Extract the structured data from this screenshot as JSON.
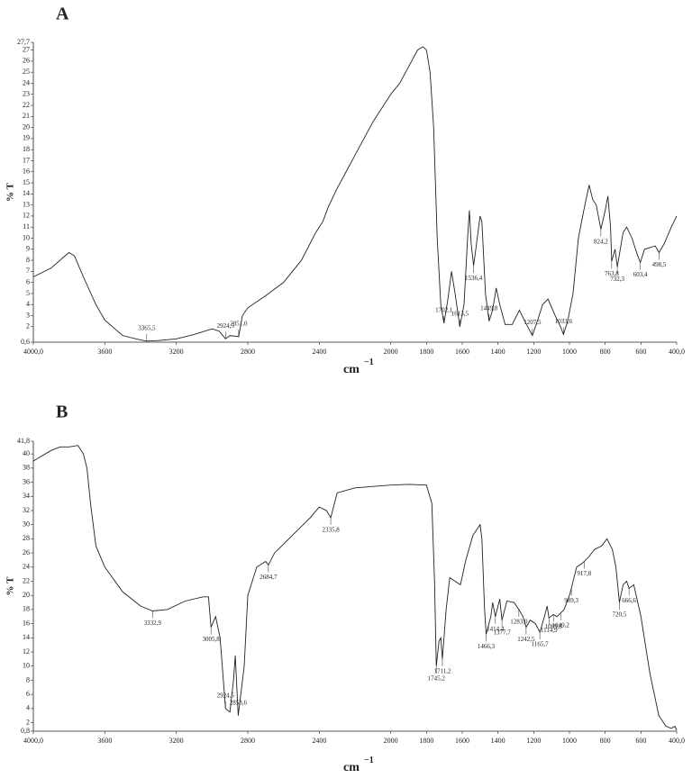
{
  "chart_data": [
    {
      "type": "line",
      "title": "A",
      "ylabel": "% T",
      "xlabel": "cm",
      "xlabel_exponent": "−1",
      "color": "#222222",
      "xlim": [
        4000,
        400
      ],
      "ylim": [
        0.6,
        27.7
      ],
      "xticks": [
        {
          "value": 4000,
          "label": "4000,0"
        },
        3600,
        3200,
        2800,
        2400,
        2000,
        1800,
        1600,
        1400,
        1200,
        1000,
        800,
        600,
        {
          "value": 400,
          "label": "400,0"
        }
      ],
      "yticks": [
        {
          "value": 0.6,
          "label": "0,6"
        },
        2,
        3,
        4,
        5,
        6,
        7,
        8,
        9,
        10,
        11,
        12,
        13,
        14,
        15,
        16,
        17,
        18,
        19,
        20,
        21,
        22,
        23,
        24,
        25,
        26,
        27,
        {
          "value": 27.7,
          "label": "27,7"
        }
      ],
      "x": [
        4000,
        3900,
        3830,
        3800,
        3770,
        3720,
        3650,
        3600,
        3500,
        3400,
        3365.5,
        3300,
        3200,
        3100,
        3000,
        2960,
        2924.5,
        2900,
        2851,
        2830,
        2800,
        2700,
        2600,
        2500,
        2420,
        2380,
        2350,
        2300,
        2200,
        2100,
        2000,
        1950,
        1900,
        1850,
        1820,
        1800,
        1780,
        1760,
        1740,
        1720,
        1702.1,
        1680,
        1660,
        1640,
        1613.5,
        1590,
        1570,
        1560,
        1550,
        1536.4,
        1520,
        1500,
        1490,
        1470,
        1449.8,
        1430,
        1410,
        1390,
        1360,
        1320,
        1280,
        1250,
        1207.5,
        1180,
        1150,
        1120,
        1080,
        1050,
        1033.6,
        1010,
        980,
        950,
        920,
        890,
        870,
        850,
        824.2,
        800,
        785,
        770,
        763.8,
        745,
        732.3,
        700,
        680,
        650,
        620,
        603.4,
        580,
        520,
        498.5,
        470,
        430,
        400
      ],
      "values": [
        6.5,
        7.3,
        8.3,
        8.7,
        8.4,
        6.5,
        4.0,
        2.6,
        1.2,
        0.8,
        0.7,
        0.75,
        0.9,
        1.3,
        1.8,
        1.6,
        0.9,
        1.2,
        1.1,
        3.0,
        3.7,
        4.8,
        6.0,
        8.0,
        10.5,
        11.5,
        12.8,
        14.5,
        17.5,
        20.5,
        23.0,
        24.0,
        25.5,
        27.0,
        27.3,
        27.0,
        25.0,
        20.0,
        10.0,
        4.0,
        2.3,
        4.5,
        7.0,
        5.0,
        2.0,
        4.0,
        10.0,
        12.5,
        9.5,
        7.5,
        9.5,
        12.0,
        11.5,
        5.0,
        2.5,
        3.5,
        5.5,
        4.0,
        2.2,
        2.2,
        3.5,
        2.5,
        1.2,
        2.5,
        4.0,
        4.5,
        3.0,
        2.0,
        1.3,
        2.5,
        5.0,
        10.0,
        12.5,
        14.8,
        13.5,
        13.0,
        10.8,
        12.5,
        13.8,
        11.0,
        7.9,
        9.0,
        7.4,
        10.5,
        11.0,
        10.0,
        8.5,
        7.8,
        9.0,
        9.3,
        8.7,
        9.5,
        11.0,
        12.0
      ],
      "annotations": [
        {
          "x": 3365.5,
          "y": 0.7,
          "label": "3365,5"
        },
        {
          "x": 2924.5,
          "y": 0.9,
          "label": "2924,5"
        },
        {
          "x": 2851,
          "y": 1.1,
          "label": "2851,0"
        },
        {
          "x": 1702.1,
          "y": 2.3,
          "label": "1702,1"
        },
        {
          "x": 1613.5,
          "y": 2.0,
          "label": "1613,5"
        },
        {
          "x": 1536.4,
          "y": 7.5,
          "label": "1536,4"
        },
        {
          "x": 1449.8,
          "y": 2.5,
          "label": "1449,8"
        },
        {
          "x": 1207.5,
          "y": 1.2,
          "label": "1207,5"
        },
        {
          "x": 1033.6,
          "y": 1.3,
          "label": "1033,6"
        },
        {
          "x": 824.2,
          "y": 10.8,
          "label": "824,2"
        },
        {
          "x": 763.8,
          "y": 7.9,
          "label": "763,8"
        },
        {
          "x": 732.3,
          "y": 7.4,
          "label": "732,3"
        },
        {
          "x": 603.4,
          "y": 7.8,
          "label": "603,4"
        },
        {
          "x": 498.5,
          "y": 8.7,
          "label": "498,5"
        }
      ]
    },
    {
      "type": "line",
      "title": "B",
      "ylabel": "% T",
      "xlabel": "cm",
      "xlabel_exponent": "−1",
      "color": "#222222",
      "xlim": [
        4000,
        400
      ],
      "ylim": [
        0.8,
        41.8
      ],
      "xticks": [
        {
          "value": 4000,
          "label": "4000,0"
        },
        3600,
        3200,
        2800,
        2400,
        2000,
        1800,
        1600,
        1400,
        1200,
        1000,
        800,
        600,
        {
          "value": 400,
          "label": "400,0"
        }
      ],
      "yticks": [
        {
          "value": 0.8,
          "label": "0,8"
        },
        2,
        4,
        6,
        8,
        10,
        12,
        14,
        16,
        18,
        20,
        22,
        24,
        26,
        28,
        30,
        32,
        34,
        36,
        38,
        40,
        {
          "value": 41.8,
          "label": "41,8"
        }
      ],
      "x": [
        4000,
        3900,
        3850,
        3800,
        3750,
        3720,
        3700,
        3680,
        3650,
        3600,
        3500,
        3400,
        3332.9,
        3250,
        3150,
        3050,
        3020,
        3005.8,
        2980,
        2955,
        2924.5,
        2900,
        2880,
        2870,
        2853.6,
        2820,
        2800,
        2750,
        2700,
        2684.7,
        2650,
        2550,
        2450,
        2400,
        2360,
        2335.8,
        2300,
        2200,
        2000,
        1900,
        1800,
        1770,
        1755,
        1745.2,
        1730,
        1720,
        1711.2,
        1690,
        1670,
        1640,
        1610,
        1580,
        1540,
        1500,
        1490,
        1475,
        1466.3,
        1440,
        1430,
        1414.4,
        1390,
        1377.7,
        1350,
        1310,
        1283,
        1260,
        1242.5,
        1220,
        1190,
        1165.7,
        1140,
        1125,
        1114.9,
        1089.8,
        1070,
        1049.2,
        1030,
        1000,
        989.3,
        960,
        930,
        917.8,
        890,
        860,
        820,
        790,
        760,
        740,
        720.5,
        700,
        680,
        666.6,
        640,
        600,
        550,
        500,
        460,
        430,
        410,
        400
      ],
      "values": [
        39.0,
        40.5,
        41.0,
        41.0,
        41.2,
        40.0,
        38.0,
        33.0,
        27.0,
        24.0,
        20.5,
        18.5,
        17.8,
        18.0,
        19.2,
        19.8,
        19.8,
        15.5,
        17.0,
        14.0,
        4.0,
        3.5,
        8.0,
        11.5,
        3.0,
        10.0,
        20.0,
        24.0,
        24.8,
        24.3,
        26.0,
        28.5,
        31.0,
        32.5,
        32.0,
        31.0,
        34.5,
        35.2,
        35.6,
        35.7,
        35.6,
        33.0,
        22.0,
        10.0,
        13.5,
        14.0,
        11.0,
        18.0,
        22.5,
        22.0,
        21.5,
        25.0,
        28.5,
        30.0,
        28.0,
        18.0,
        14.5,
        17.0,
        19.0,
        17.0,
        19.5,
        16.5,
        19.2,
        19.0,
        18.0,
        17.0,
        15.5,
        16.5,
        16.0,
        14.8,
        17.0,
        18.5,
        16.8,
        17.3,
        17.0,
        17.5,
        18.0,
        20.0,
        21.0,
        24.0,
        24.5,
        24.8,
        25.5,
        26.5,
        27.0,
        28.0,
        26.5,
        24.0,
        19.0,
        21.5,
        22.0,
        21.0,
        21.5,
        17.0,
        9.0,
        3.0,
        1.5,
        1.2,
        1.5,
        0.9
      ],
      "annotations": [
        {
          "x": 3332.9,
          "y": 17.8,
          "label": "3332,9"
        },
        {
          "x": 3005.8,
          "y": 15.5,
          "label": "3005,8"
        },
        {
          "x": 2924.5,
          "y": 4.0,
          "label": "2924,5"
        },
        {
          "x": 2853.6,
          "y": 3.0,
          "label": "2853,6"
        },
        {
          "x": 2684.7,
          "y": 24.3,
          "label": "2684,7"
        },
        {
          "x": 2335.8,
          "y": 31.0,
          "label": "2335,8"
        },
        {
          "x": 1745.2,
          "y": 10.0,
          "label": "1745,2"
        },
        {
          "x": 1711.2,
          "y": 11.0,
          "label": "1711,2"
        },
        {
          "x": 1466.3,
          "y": 14.5,
          "label": "1466,3"
        },
        {
          "x": 1414.4,
          "y": 17.0,
          "label": "1414,4"
        },
        {
          "x": 1377.7,
          "y": 16.5,
          "label": "1377,7"
        },
        {
          "x": 1283,
          "y": 18.0,
          "label": "1283,0"
        },
        {
          "x": 1242.5,
          "y": 15.5,
          "label": "1242,5"
        },
        {
          "x": 1165.7,
          "y": 14.8,
          "label": "1165,7"
        },
        {
          "x": 1114.9,
          "y": 16.8,
          "label": "1114,9"
        },
        {
          "x": 1089.8,
          "y": 17.3,
          "label": "1089,8"
        },
        {
          "x": 1049.2,
          "y": 17.5,
          "label": "1049,2"
        },
        {
          "x": 989.3,
          "y": 21.0,
          "label": "989,3"
        },
        {
          "x": 917.8,
          "y": 24.8,
          "label": "917,8"
        },
        {
          "x": 720.5,
          "y": 19.0,
          "label": "720,5"
        },
        {
          "x": 666.6,
          "y": 21.0,
          "label": "666,6"
        }
      ]
    }
  ]
}
